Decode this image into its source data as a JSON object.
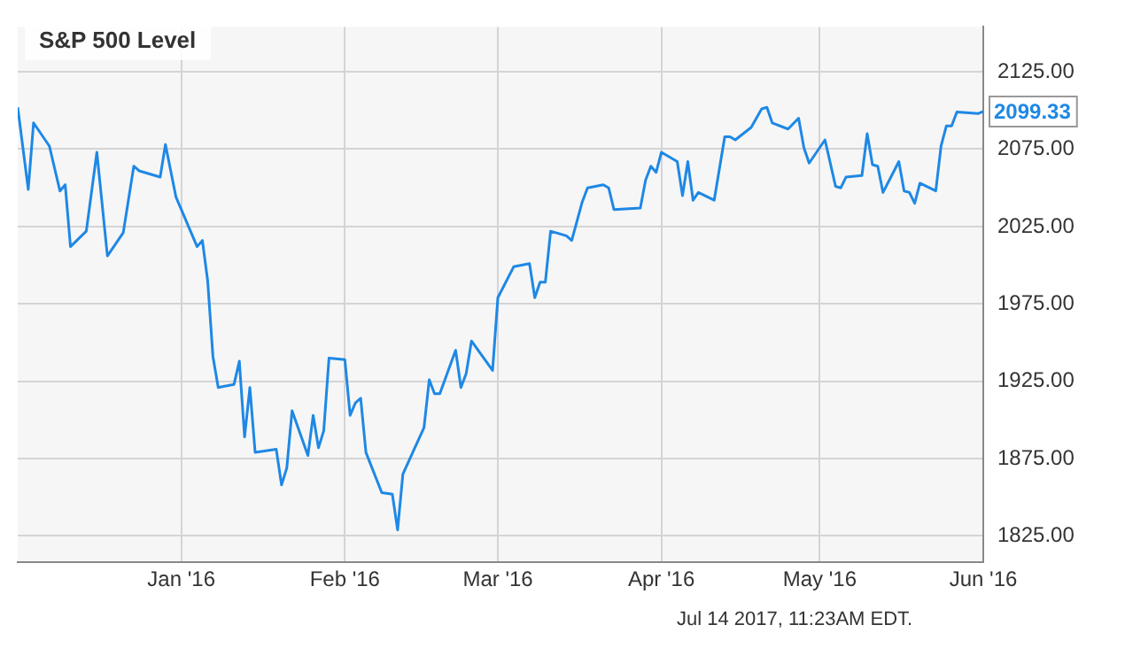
{
  "chart_data": {
    "type": "line",
    "title": "S&P 500 Level",
    "x": [
      "2015-12-01",
      "2015-12-03",
      "2015-12-04",
      "2015-12-07",
      "2015-12-09",
      "2015-12-10",
      "2015-12-11",
      "2015-12-14",
      "2015-12-16",
      "2015-12-18",
      "2015-12-21",
      "2015-12-23",
      "2015-12-24",
      "2015-12-28",
      "2015-12-29",
      "2015-12-31",
      "2016-01-04",
      "2016-01-05",
      "2016-01-06",
      "2016-01-07",
      "2016-01-08",
      "2016-01-11",
      "2016-01-12",
      "2016-01-13",
      "2016-01-14",
      "2016-01-15",
      "2016-01-19",
      "2016-01-20",
      "2016-01-21",
      "2016-01-22",
      "2016-01-25",
      "2016-01-26",
      "2016-01-27",
      "2016-01-28",
      "2016-01-29",
      "2016-02-01",
      "2016-02-02",
      "2016-02-03",
      "2016-02-04",
      "2016-02-05",
      "2016-02-08",
      "2016-02-10",
      "2016-02-11",
      "2016-02-12",
      "2016-02-16",
      "2016-02-17",
      "2016-02-18",
      "2016-02-19",
      "2016-02-22",
      "2016-02-23",
      "2016-02-24",
      "2016-02-25",
      "2016-02-29",
      "2016-03-01",
      "2016-03-04",
      "2016-03-07",
      "2016-03-08",
      "2016-03-09",
      "2016-03-10",
      "2016-03-11",
      "2016-03-14",
      "2016-03-15",
      "2016-03-17",
      "2016-03-18",
      "2016-03-21",
      "2016-03-22",
      "2016-03-23",
      "2016-03-28",
      "2016-03-29",
      "2016-03-30",
      "2016-03-31",
      "2016-04-01",
      "2016-04-04",
      "2016-04-05",
      "2016-04-06",
      "2016-04-07",
      "2016-04-08",
      "2016-04-11",
      "2016-04-13",
      "2016-04-14",
      "2016-04-15",
      "2016-04-18",
      "2016-04-20",
      "2016-04-21",
      "2016-04-22",
      "2016-04-25",
      "2016-04-27",
      "2016-04-28",
      "2016-04-29",
      "2016-05-02",
      "2016-05-04",
      "2016-05-05",
      "2016-05-06",
      "2016-05-09",
      "2016-05-10",
      "2016-05-11",
      "2016-05-12",
      "2016-05-13",
      "2016-05-16",
      "2016-05-17",
      "2016-05-18",
      "2016-05-19",
      "2016-05-20",
      "2016-05-23",
      "2016-05-24",
      "2016-05-25",
      "2016-05-26",
      "2016-05-27",
      "2016-05-31",
      "2016-06-01"
    ],
    "series": [
      {
        "color": "#1e88e5",
        "values": [
          2102,
          2049,
          2092,
          2077,
          2048,
          2052,
          2012,
          2022,
          2073,
          2006,
          2021,
          2064,
          2061,
          2057,
          2078,
          2044,
          2012,
          2016,
          1990,
          1941,
          1921,
          1923,
          1938,
          1889,
          1921,
          1879,
          1881,
          1858,
          1869,
          1906,
          1877,
          1903,
          1882,
          1893,
          1940,
          1939,
          1903,
          1911,
          1914,
          1879,
          1853,
          1852,
          1829,
          1865,
          1895,
          1926,
          1917,
          1917,
          1945,
          1921,
          1930,
          1951,
          1932,
          1979,
          1999,
          2001,
          1979,
          1989,
          1989,
          2022,
          2019,
          2016,
          2041,
          2050,
          2052,
          2050,
          2036,
          2037,
          2055,
          2064,
          2060,
          2073,
          2067,
          2045,
          2067,
          2042,
          2047,
          2042,
          2083,
          2083,
          2081,
          2089,
          2101,
          2102,
          2092,
          2088,
          2095,
          2076,
          2066,
          2081,
          2051,
          2050,
          2057,
          2058,
          2085,
          2065,
          2064,
          2047,
          2067,
          2048,
          2047,
          2040,
          2053,
          2048,
          2077,
          2090,
          2090,
          2099,
          2098,
          2099.33
        ]
      }
    ],
    "xlim": [
      "2015-12-01",
      "2016-06-01"
    ],
    "xticks": [
      {
        "value": "2016-01-01",
        "label": "Jan '16"
      },
      {
        "value": "2016-02-01",
        "label": "Feb '16"
      },
      {
        "value": "2016-03-01",
        "label": "Mar '16"
      },
      {
        "value": "2016-04-01",
        "label": "Apr '16"
      },
      {
        "value": "2016-05-01",
        "label": "May '16"
      },
      {
        "value": "2016-06-01",
        "label": "Jun '16"
      }
    ],
    "ylim": [
      1808,
      2154
    ],
    "yticks": [
      {
        "value": 1825,
        "label": "1825.00"
      },
      {
        "value": 1875,
        "label": "1875.00"
      },
      {
        "value": 1925,
        "label": "1925.00"
      },
      {
        "value": 1975,
        "label": "1975.00"
      },
      {
        "value": 2025,
        "label": "2025.00"
      },
      {
        "value": 2075,
        "label": "2075.00"
      },
      {
        "value": 2125,
        "label": "2125.00"
      }
    ],
    "grid": true,
    "marker": "none",
    "line_style": "solid",
    "annotations": [
      {
        "text": "2099.33",
        "x": "2016-06-01",
        "y": 2099.33
      },
      "Jul 14 2017, 11:23AM EDT."
    ]
  }
}
